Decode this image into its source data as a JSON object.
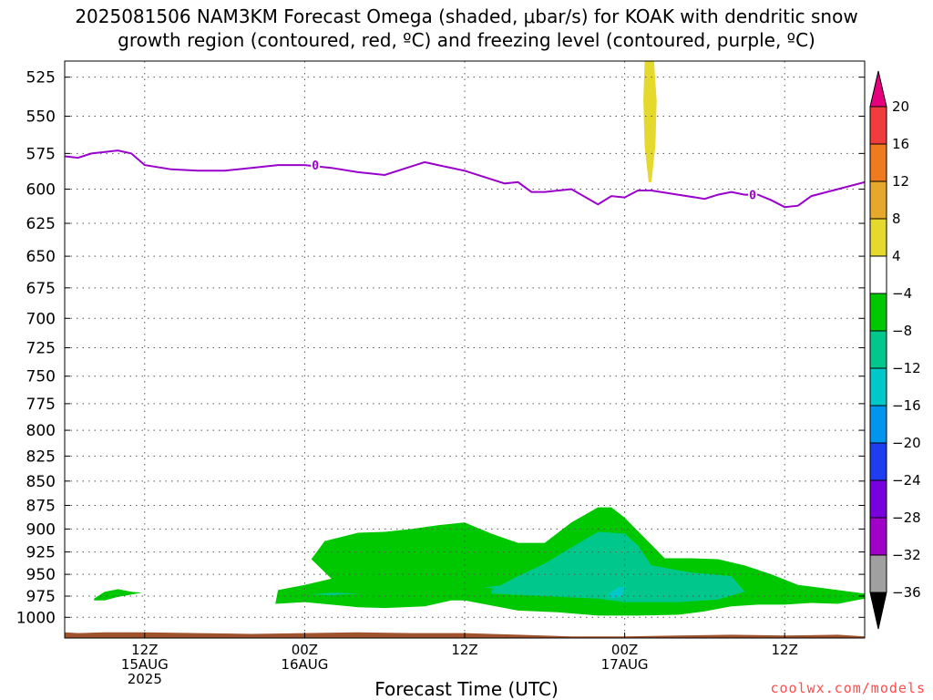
{
  "title_line1": "2025081506 NAM3KM Forecast Omega (shaded, μbar/s) for KOAK with dendritic snow",
  "title_line2": "growth region (contoured, red, ºC) and freezing level (contoured, purple, ºC)",
  "credit": "coolwx.com/models",
  "chart_data": {
    "type": "heatmap",
    "title": "2025081506 NAM3KM Forecast Omega (shaded, μbar/s) for KOAK with dendritic snow growth region (contoured, red, ºC) and freezing level (contoured, purple, ºC)",
    "xlabel": "Forecast Time (UTC)",
    "ylabel": "",
    "x_range_hours": [
      6,
      66
    ],
    "x_ticks": [
      {
        "hour": 12,
        "lines": [
          "12Z",
          "15AUG",
          "2025"
        ]
      },
      {
        "hour": 24,
        "lines": [
          "00Z",
          "16AUG"
        ]
      },
      {
        "hour": 36,
        "lines": [
          "12Z"
        ]
      },
      {
        "hour": 48,
        "lines": [
          "00Z",
          "17AUG"
        ]
      },
      {
        "hour": 60,
        "lines": [
          "12Z"
        ]
      }
    ],
    "y_axis": {
      "type": "log_pressure",
      "units": "hPa",
      "range": [
        1025,
        515
      ],
      "ticks": [
        525,
        550,
        575,
        600,
        625,
        650,
        675,
        700,
        725,
        750,
        775,
        800,
        825,
        850,
        875,
        900,
        925,
        950,
        975,
        1000
      ]
    },
    "grid": true,
    "colorbar": {
      "labels": [
        "20",
        "16",
        "12",
        "8",
        "4",
        "−4",
        "−8",
        "−12",
        "−16",
        "−20",
        "−24",
        "−28",
        "−32",
        "−36"
      ],
      "bins": [
        {
          "range": [
            20,
            null
          ],
          "color": "#e6007e"
        },
        {
          "range": [
            16,
            20
          ],
          "color": "#f03c3c"
        },
        {
          "range": [
            12,
            16
          ],
          "color": "#f07a1e"
        },
        {
          "range": [
            8,
            12
          ],
          "color": "#e6a82a"
        },
        {
          "range": [
            4,
            8
          ],
          "color": "#e6d92e"
        },
        {
          "range": [
            -4,
            4
          ],
          "color": "#ffffff"
        },
        {
          "range": [
            -8,
            -4
          ],
          "color": "#00c800"
        },
        {
          "range": [
            -12,
            -8
          ],
          "color": "#00c88c"
        },
        {
          "range": [
            -16,
            -12
          ],
          "color": "#00c8c8"
        },
        {
          "range": [
            -20,
            -16
          ],
          "color": "#0096f0"
        },
        {
          "range": [
            -24,
            -20
          ],
          "color": "#1e3cf0"
        },
        {
          "range": [
            -28,
            -24
          ],
          "color": "#7800dc"
        },
        {
          "range": [
            -32,
            -28
          ],
          "color": "#a000c8"
        },
        {
          "range": [
            -36,
            -32
          ],
          "color": "#a0a0a0"
        },
        {
          "range": [
            null,
            -36
          ],
          "color": "#000000"
        }
      ]
    },
    "freezing_level": {
      "label": "0",
      "color": "#9900cc",
      "points": [
        [
          6,
          577
        ],
        [
          7,
          578
        ],
        [
          8,
          575
        ],
        [
          9,
          574
        ],
        [
          10,
          573
        ],
        [
          11,
          575
        ],
        [
          12,
          583
        ],
        [
          14,
          586
        ],
        [
          16,
          587
        ],
        [
          18,
          587
        ],
        [
          20,
          585
        ],
        [
          22,
          583
        ],
        [
          24,
          583
        ],
        [
          26,
          585
        ],
        [
          28,
          588
        ],
        [
          30,
          590
        ],
        [
          32,
          584
        ],
        [
          33,
          581
        ],
        [
          34,
          583
        ],
        [
          36,
          587
        ],
        [
          38,
          593
        ],
        [
          39,
          596
        ],
        [
          40,
          595
        ],
        [
          41,
          602
        ],
        [
          42,
          602
        ],
        [
          44,
          600
        ],
        [
          46,
          611
        ],
        [
          47,
          605
        ],
        [
          48,
          606
        ],
        [
          49,
          601
        ],
        [
          50,
          601
        ],
        [
          52,
          604
        ],
        [
          54,
          607
        ],
        [
          55,
          604
        ],
        [
          56,
          602
        ],
        [
          57,
          604
        ],
        [
          58,
          604
        ],
        [
          59,
          608
        ],
        [
          60,
          613
        ],
        [
          61,
          612
        ],
        [
          62,
          605
        ],
        [
          64,
          600
        ],
        [
          66,
          595
        ]
      ]
    },
    "omega_regions": [
      {
        "name": "weak-rising-main",
        "bin": "-8 to -4",
        "color": "#00c800",
        "polygon": [
          [
            21.8,
            984
          ],
          [
            24,
            982
          ],
          [
            26,
            985
          ],
          [
            28,
            988
          ],
          [
            30,
            989
          ],
          [
            33,
            987
          ],
          [
            35,
            980
          ],
          [
            36,
            980
          ],
          [
            40,
            992
          ],
          [
            43,
            994
          ],
          [
            46,
            998
          ],
          [
            49,
            998
          ],
          [
            52,
            997
          ],
          [
            54,
            993
          ],
          [
            56,
            987
          ],
          [
            58,
            985
          ],
          [
            60,
            985
          ],
          [
            62,
            983
          ],
          [
            64,
            984
          ],
          [
            66,
            978
          ],
          [
            66,
            972
          ],
          [
            64,
            968
          ],
          [
            61,
            962
          ],
          [
            59,
            950
          ],
          [
            57,
            940
          ],
          [
            55,
            933
          ],
          [
            53,
            932
          ],
          [
            51,
            932
          ],
          [
            50,
            917
          ],
          [
            48,
            888
          ],
          [
            47,
            877
          ],
          [
            46,
            877
          ],
          [
            44,
            893
          ],
          [
            42,
            915
          ],
          [
            40,
            915
          ],
          [
            38,
            905
          ],
          [
            36,
            893
          ],
          [
            34,
            896
          ],
          [
            32,
            900
          ],
          [
            30,
            903
          ],
          [
            28,
            904
          ],
          [
            25.5,
            913
          ],
          [
            24.5,
            933
          ],
          [
            26,
            955
          ],
          [
            24,
            962
          ],
          [
            22,
            968
          ]
        ]
      },
      {
        "name": "weak-rising-left-blob",
        "bin": "-8 to -4",
        "color": "#00c800",
        "polygon": [
          [
            8.2,
            978
          ],
          [
            9,
            970
          ],
          [
            10,
            967
          ],
          [
            11,
            970
          ],
          [
            11.8,
            971
          ],
          [
            10,
            976
          ],
          [
            9,
            980
          ],
          [
            8.2,
            980
          ]
        ]
      },
      {
        "name": "moderate-rising",
        "bin": "-12 to -8",
        "color": "#00c88c",
        "polygon": [
          [
            38,
            972
          ],
          [
            42,
            975
          ],
          [
            46,
            978
          ],
          [
            48,
            982
          ],
          [
            52,
            982
          ],
          [
            55,
            979
          ],
          [
            57,
            970
          ],
          [
            56,
            952
          ],
          [
            53,
            948
          ],
          [
            50,
            940
          ],
          [
            49,
            918
          ],
          [
            48,
            905
          ],
          [
            46,
            903
          ],
          [
            44,
            920
          ],
          [
            42,
            938
          ],
          [
            40,
            952
          ],
          [
            38,
            968
          ]
        ]
      },
      {
        "name": "moderate-rising-small-a",
        "bin": "-12 to -8",
        "color": "#00c88c",
        "polygon": [
          [
            24.5,
            973
          ],
          [
            26,
            971
          ],
          [
            28,
            972
          ],
          [
            26,
            974
          ]
        ]
      },
      {
        "name": "moderate-rising-small-b",
        "bin": "-12 to -8",
        "color": "#00c88c",
        "polygon": [
          [
            37.5,
            965
          ],
          [
            38.5,
            963
          ],
          [
            39.5,
            965
          ],
          [
            38.5,
            967
          ]
        ]
      },
      {
        "name": "stronger-rising-core",
        "bin": "-16 to -12",
        "color": "#00c8c8",
        "polygon": [
          [
            46.8,
            972
          ],
          [
            47.5,
            965
          ],
          [
            48,
            964
          ],
          [
            47.8,
            975
          ],
          [
            47,
            978
          ]
        ]
      },
      {
        "name": "sinking-column",
        "bin": "4 to 8",
        "color": "#e6d92e",
        "polygon": [
          [
            49.5,
            515
          ],
          [
            50.2,
            515
          ],
          [
            50.4,
            540
          ],
          [
            50.3,
            570
          ],
          [
            50.0,
            595
          ],
          [
            49.8,
            595
          ],
          [
            49.5,
            570
          ],
          [
            49.4,
            540
          ]
        ]
      }
    ],
    "terrain": {
      "name": "surface",
      "color": "#a0522d",
      "points": [
        [
          6,
          1018
        ],
        [
          7,
          1019
        ],
        [
          9,
          1018
        ],
        [
          12,
          1018
        ],
        [
          16,
          1019
        ],
        [
          20,
          1020
        ],
        [
          24,
          1019
        ],
        [
          28,
          1018
        ],
        [
          32,
          1019
        ],
        [
          36,
          1019
        ],
        [
          40,
          1021
        ],
        [
          44,
          1023
        ],
        [
          48,
          1023
        ],
        [
          52,
          1022
        ],
        [
          56,
          1021
        ],
        [
          60,
          1022
        ],
        [
          64,
          1021
        ],
        [
          66,
          1023
        ]
      ]
    }
  }
}
